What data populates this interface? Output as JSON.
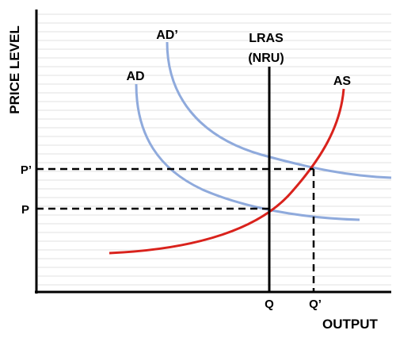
{
  "chart_data": {
    "type": "line",
    "title": "",
    "xlabel": "OUTPUT",
    "ylabel": "PRICE LEVEL",
    "grid": true,
    "grid_color": "#e2e2e2",
    "colors": {
      "demand": "#8faadc",
      "supply": "#d9221c",
      "axis": "#000000",
      "guides": "#000000"
    },
    "x_ticks": [
      "Q",
      "Q’"
    ],
    "y_ticks": [
      "P’",
      "P"
    ],
    "curves": [
      {
        "label": "AD",
        "kind": "demand"
      },
      {
        "label": "AD’",
        "kind": "demand"
      },
      {
        "label": "AS",
        "kind": "supply"
      }
    ],
    "vertical_line": {
      "label_line1": "LRAS",
      "label_line2": "(NRU)"
    },
    "equilibria": [
      {
        "curves": [
          "AD",
          "AS"
        ],
        "x": "Q",
        "y": "P"
      },
      {
        "curves": [
          "AD’",
          "AS"
        ],
        "x": "Q’",
        "y": "P’"
      }
    ]
  }
}
